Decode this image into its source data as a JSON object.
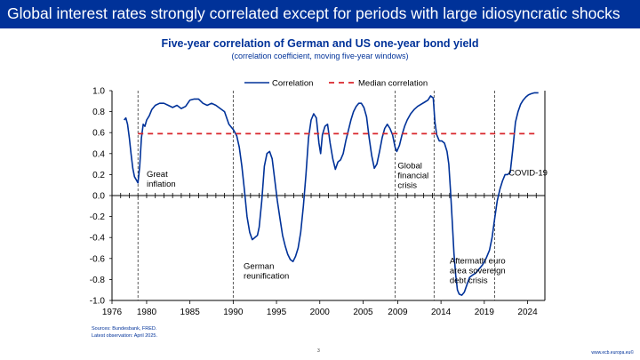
{
  "slide": {
    "title": "Global interest rates strongly correlated except for periods with large idiosyncratic shocks",
    "page_number": "3",
    "url": "www.ecb.europa.eu©",
    "sources": "Sources: Bundesbank, FRED.",
    "latest_observation": "Latest observation: April 2025.",
    "colors": {
      "banner": "#003299",
      "text": "#003299",
      "correlation_line": "#003299",
      "median_line": "#d9262b"
    }
  },
  "chart_data": {
    "type": "line",
    "title": "Five-year correlation of German and US one-year bond yield",
    "subtitle": "(correlation coefficient, moving five-year windows)",
    "xlabel": "",
    "ylabel": "",
    "xlim": [
      1976,
      2026
    ],
    "ylim": [
      -1.0,
      1.0
    ],
    "x_ticks": [
      "1976",
      "1980",
      "1985",
      "1990",
      "1995",
      "2000",
      "2005",
      "2009",
      "2014",
      "2019",
      "2024"
    ],
    "y_ticks": [
      "1.0",
      "0.8",
      "0.6",
      "0.4",
      "0.2",
      "0.0",
      "-0.2",
      "-0.4",
      "-0.6",
      "-0.8",
      "-1.0"
    ],
    "legend_position": "top-center",
    "grid": false,
    "series": [
      {
        "name": "Correlation",
        "style": "solid",
        "color": "#003299",
        "points": [
          [
            1977.4,
            0.72
          ],
          [
            1977.6,
            0.74
          ],
          [
            1977.8,
            0.68
          ],
          [
            1978.0,
            0.55
          ],
          [
            1978.2,
            0.4
          ],
          [
            1978.4,
            0.26
          ],
          [
            1978.6,
            0.18
          ],
          [
            1978.8,
            0.15
          ],
          [
            1979.0,
            0.12
          ],
          [
            1979.2,
            0.28
          ],
          [
            1979.4,
            0.55
          ],
          [
            1979.6,
            0.68
          ],
          [
            1979.8,
            0.66
          ],
          [
            1980.0,
            0.72
          ],
          [
            1980.3,
            0.76
          ],
          [
            1980.6,
            0.82
          ],
          [
            1981.0,
            0.86
          ],
          [
            1981.5,
            0.88
          ],
          [
            1982.0,
            0.88
          ],
          [
            1982.5,
            0.86
          ],
          [
            1983.0,
            0.84
          ],
          [
            1983.5,
            0.86
          ],
          [
            1984.0,
            0.83
          ],
          [
            1984.5,
            0.85
          ],
          [
            1985.0,
            0.91
          ],
          [
            1985.5,
            0.92
          ],
          [
            1986.0,
            0.92
          ],
          [
            1986.5,
            0.88
          ],
          [
            1987.0,
            0.86
          ],
          [
            1987.5,
            0.88
          ],
          [
            1988.0,
            0.86
          ],
          [
            1988.5,
            0.83
          ],
          [
            1989.0,
            0.8
          ],
          [
            1989.5,
            0.68
          ],
          [
            1990.0,
            0.63
          ],
          [
            1990.4,
            0.57
          ],
          [
            1990.7,
            0.46
          ],
          [
            1991.0,
            0.28
          ],
          [
            1991.3,
            0.05
          ],
          [
            1991.6,
            -0.2
          ],
          [
            1991.9,
            -0.35
          ],
          [
            1992.2,
            -0.42
          ],
          [
            1992.5,
            -0.4
          ],
          [
            1992.8,
            -0.38
          ],
          [
            1993.0,
            -0.3
          ],
          [
            1993.3,
            -0.05
          ],
          [
            1993.6,
            0.28
          ],
          [
            1993.9,
            0.4
          ],
          [
            1994.2,
            0.42
          ],
          [
            1994.5,
            0.35
          ],
          [
            1994.8,
            0.15
          ],
          [
            1995.1,
            -0.05
          ],
          [
            1995.4,
            -0.22
          ],
          [
            1995.7,
            -0.38
          ],
          [
            1996.0,
            -0.48
          ],
          [
            1996.3,
            -0.56
          ],
          [
            1996.6,
            -0.61
          ],
          [
            1996.9,
            -0.63
          ],
          [
            1997.2,
            -0.58
          ],
          [
            1997.5,
            -0.5
          ],
          [
            1997.8,
            -0.35
          ],
          [
            1998.1,
            -0.1
          ],
          [
            1998.4,
            0.2
          ],
          [
            1998.7,
            0.55
          ],
          [
            1999.0,
            0.72
          ],
          [
            1999.3,
            0.78
          ],
          [
            1999.6,
            0.74
          ],
          [
            1999.9,
            0.5
          ],
          [
            2000.1,
            0.4
          ],
          [
            2000.3,
            0.58
          ],
          [
            2000.6,
            0.66
          ],
          [
            2000.9,
            0.68
          ],
          [
            2001.2,
            0.5
          ],
          [
            2001.5,
            0.35
          ],
          [
            2001.8,
            0.25
          ],
          [
            2002.1,
            0.32
          ],
          [
            2002.4,
            0.34
          ],
          [
            2002.7,
            0.4
          ],
          [
            2003.0,
            0.52
          ],
          [
            2003.3,
            0.62
          ],
          [
            2003.6,
            0.72
          ],
          [
            2003.9,
            0.8
          ],
          [
            2004.2,
            0.85
          ],
          [
            2004.5,
            0.88
          ],
          [
            2004.8,
            0.88
          ],
          [
            2005.1,
            0.84
          ],
          [
            2005.4,
            0.75
          ],
          [
            2005.7,
            0.55
          ],
          [
            2006.0,
            0.38
          ],
          [
            2006.3,
            0.26
          ],
          [
            2006.6,
            0.3
          ],
          [
            2006.9,
            0.42
          ],
          [
            2007.2,
            0.55
          ],
          [
            2007.5,
            0.64
          ],
          [
            2007.8,
            0.68
          ],
          [
            2008.1,
            0.64
          ],
          [
            2008.4,
            0.58
          ],
          [
            2008.7,
            0.46
          ],
          [
            2008.9,
            0.42
          ],
          [
            2009.2,
            0.48
          ],
          [
            2009.5,
            0.58
          ],
          [
            2009.8,
            0.66
          ],
          [
            2010.1,
            0.72
          ],
          [
            2010.5,
            0.78
          ],
          [
            2010.9,
            0.82
          ],
          [
            2011.3,
            0.85
          ],
          [
            2011.7,
            0.87
          ],
          [
            2012.1,
            0.89
          ],
          [
            2012.5,
            0.91
          ],
          [
            2012.8,
            0.95
          ],
          [
            2013.1,
            0.93
          ],
          [
            2013.3,
            0.7
          ],
          [
            2013.5,
            0.58
          ],
          [
            2013.8,
            0.52
          ],
          [
            2014.1,
            0.52
          ],
          [
            2014.4,
            0.5
          ],
          [
            2014.7,
            0.42
          ],
          [
            2014.9,
            0.3
          ],
          [
            2015.1,
            0.05
          ],
          [
            2015.3,
            -0.25
          ],
          [
            2015.5,
            -0.55
          ],
          [
            2015.7,
            -0.76
          ],
          [
            2015.9,
            -0.9
          ],
          [
            2016.1,
            -0.94
          ],
          [
            2016.4,
            -0.95
          ],
          [
            2016.7,
            -0.92
          ],
          [
            2017.0,
            -0.85
          ],
          [
            2017.3,
            -0.78
          ],
          [
            2017.6,
            -0.76
          ],
          [
            2018.0,
            -0.74
          ],
          [
            2018.4,
            -0.7
          ],
          [
            2018.8,
            -0.66
          ],
          [
            2019.2,
            -0.6
          ],
          [
            2019.6,
            -0.52
          ],
          [
            2019.9,
            -0.4
          ],
          [
            2020.2,
            -0.22
          ],
          [
            2020.5,
            -0.05
          ],
          [
            2020.8,
            0.06
          ],
          [
            2021.1,
            0.14
          ],
          [
            2021.4,
            0.2
          ],
          [
            2021.7,
            0.2
          ],
          [
            2022.0,
            0.22
          ],
          [
            2022.3,
            0.45
          ],
          [
            2022.6,
            0.7
          ],
          [
            2022.9,
            0.8
          ],
          [
            2023.2,
            0.87
          ],
          [
            2023.5,
            0.91
          ],
          [
            2023.8,
            0.94
          ],
          [
            2024.1,
            0.96
          ],
          [
            2024.4,
            0.97
          ],
          [
            2024.8,
            0.98
          ],
          [
            2025.25,
            0.98
          ]
        ]
      },
      {
        "name": "Median correlation",
        "style": "dashed",
        "color": "#d9262b",
        "points": [
          [
            1979.0,
            0.59
          ],
          [
            2025.25,
            0.59
          ]
        ]
      }
    ],
    "vertical_markers": [
      1979.0,
      1990.0,
      2008.7,
      2013.2,
      2020.2
    ],
    "annotations": [
      {
        "lines": [
          "Great",
          "inflation"
        ],
        "at": [
          1980.0,
          0.18
        ]
      },
      {
        "lines": [
          "German",
          "reunification"
        ],
        "at": [
          1991.2,
          -0.7
        ]
      },
      {
        "lines": [
          "Global",
          "financial",
          "crisis"
        ],
        "at": [
          2009.0,
          0.26
        ]
      },
      {
        "lines": [
          "Aftermath euro",
          "area sovereign",
          "debt crisis"
        ],
        "at": [
          2015.0,
          -0.65
        ]
      },
      {
        "lines": [
          "COVID-19"
        ],
        "at": [
          2021.8,
          0.19
        ]
      }
    ]
  }
}
